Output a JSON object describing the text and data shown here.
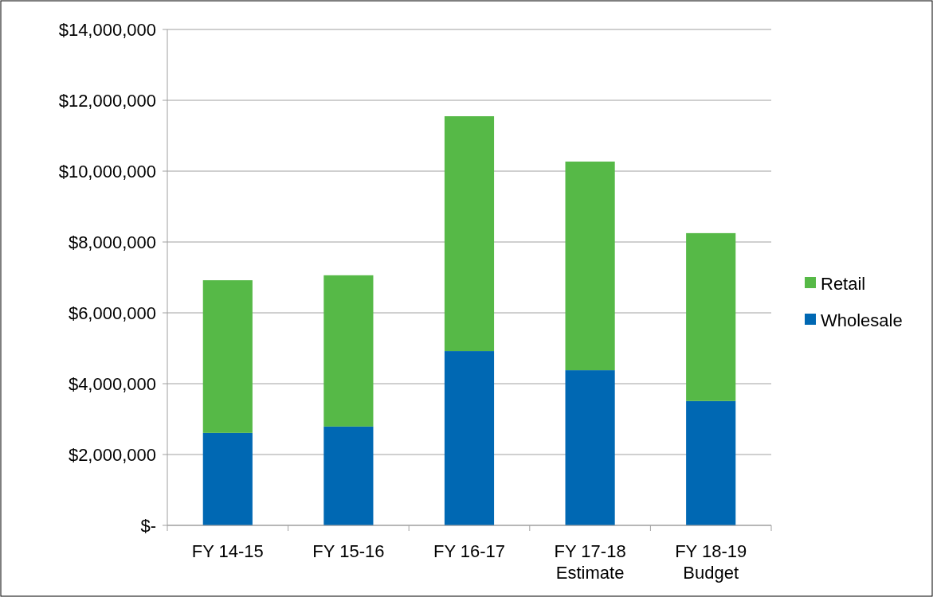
{
  "chart_data": {
    "type": "bar",
    "stacked": true,
    "categories": [
      "FY 14-15",
      "FY 15-16",
      "FY 16-17",
      "FY 17-18\nEstimate",
      "FY 18-19\nBudget"
    ],
    "series": [
      {
        "name": "Wholesale",
        "color": "#0068b3",
        "values": [
          2610000,
          2790000,
          4920000,
          4380000,
          3510000
        ]
      },
      {
        "name": "Retail",
        "color": "#56b947",
        "values": [
          4310000,
          4270000,
          6630000,
          5890000,
          4740000
        ]
      }
    ],
    "ylim": [
      0,
      14000000
    ],
    "yticks": [
      {
        "value": 0,
        "label": "$-"
      },
      {
        "value": 2000000,
        "label": "$2,000,000"
      },
      {
        "value": 4000000,
        "label": "$4,000,000"
      },
      {
        "value": 6000000,
        "label": "$6,000,000"
      },
      {
        "value": 8000000,
        "label": "$8,000,000"
      },
      {
        "value": 10000000,
        "label": "$10,000,000"
      },
      {
        "value": 12000000,
        "label": "$12,000,000"
      },
      {
        "value": 14000000,
        "label": "$14,000,000"
      }
    ],
    "grid": "y",
    "legend": "right"
  }
}
